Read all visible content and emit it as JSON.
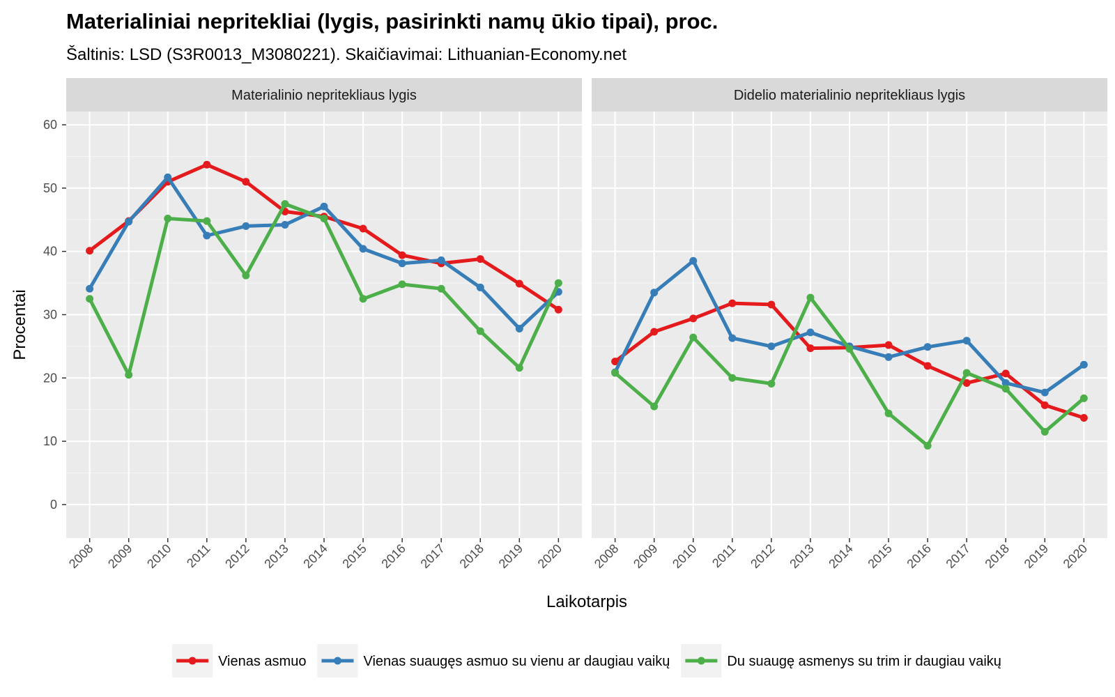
{
  "chart_data": {
    "type": "line",
    "title": "Materialiniai nepritekliai (lygis, pasirinkti namų ūkio tipai), proc.",
    "subtitle": "Šaltinis: LSD (S3R0013_M3080221). Skaičiavimai: Lithuanian-Economy.net",
    "xlabel": "Laikotarpis",
    "ylabel": "Procentai",
    "ylim": [
      0,
      60
    ],
    "yticks": [
      0,
      10,
      20,
      30,
      40,
      50,
      60
    ],
    "x": [
      "2008",
      "2009",
      "2010",
      "2011",
      "2012",
      "2013",
      "2014",
      "2015",
      "2016",
      "2017",
      "2018",
      "2019",
      "2020"
    ],
    "legend_position": "bottom",
    "grid": true,
    "facets": [
      {
        "label": "Materialinio nepritekliaus lygis",
        "series": [
          {
            "name": "Vienas asmuo",
            "color": "#E41A1C",
            "values": [
              40.1,
              44.8,
              51.0,
              53.7,
              51.0,
              46.3,
              45.5,
              43.6,
              39.4,
              38.1,
              38.8,
              34.9,
              30.8
            ]
          },
          {
            "name": "Vienas suaugęs asmuo su vienu ar daugiau vaikų",
            "color": "#377EB8",
            "values": [
              34.1,
              44.7,
              51.7,
              42.5,
              44.0,
              44.2,
              47.1,
              40.4,
              38.1,
              38.6,
              34.3,
              27.8,
              33.6
            ]
          },
          {
            "name": "Du suaugę asmenys su trim ir daugiau vaikų",
            "color": "#4DAF4A",
            "values": [
              32.5,
              20.5,
              45.2,
              44.8,
              36.2,
              47.5,
              45.2,
              32.5,
              34.8,
              34.1,
              27.4,
              21.6,
              35.0
            ]
          }
        ]
      },
      {
        "label": "Didelio materialinio nepritekliaus lygis",
        "series": [
          {
            "name": "Vienas asmuo",
            "color": "#E41A1C",
            "values": [
              22.6,
              27.3,
              29.4,
              31.8,
              31.6,
              24.7,
              24.8,
              25.2,
              21.9,
              19.2,
              20.7,
              15.7,
              13.7
            ]
          },
          {
            "name": "Vienas suaugęs asmuo su vienu ar daugiau vaikų",
            "color": "#377EB8",
            "values": [
              20.9,
              33.5,
              38.5,
              26.3,
              25.0,
              27.2,
              25.0,
              23.3,
              24.9,
              25.9,
              19.2,
              17.7,
              22.1
            ]
          },
          {
            "name": "Du suaugę asmenys su trim ir daugiau vaikų",
            "color": "#4DAF4A",
            "values": [
              20.8,
              15.5,
              26.4,
              20.0,
              19.1,
              32.7,
              24.6,
              14.4,
              9.3,
              20.8,
              18.3,
              11.5,
              16.8
            ]
          }
        ]
      }
    ],
    "legend": [
      {
        "name": "Vienas asmuo",
        "color": "#E41A1C"
      },
      {
        "name": "Vienas suaugęs asmuo su vienu ar daugiau vaikų",
        "color": "#377EB8"
      },
      {
        "name": "Du suaugę asmenys su trim ir daugiau vaikų",
        "color": "#4DAF4A"
      }
    ]
  }
}
